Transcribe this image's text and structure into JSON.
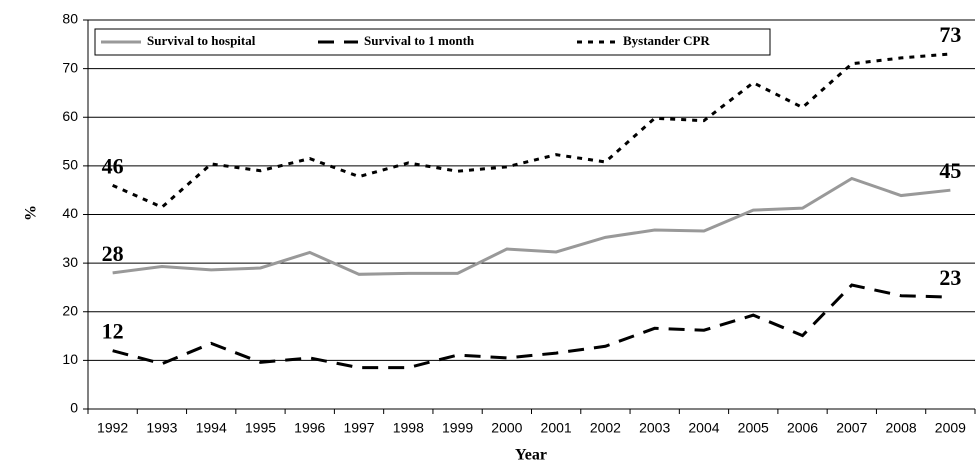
{
  "chart_data": {
    "type": "line",
    "x_label": "Year",
    "y_label": "%",
    "categories": [
      "1992",
      "1993",
      "1994",
      "1995",
      "1996",
      "1997",
      "1998",
      "1999",
      "2000",
      "2001",
      "2002",
      "2003",
      "2004",
      "2005",
      "2006",
      "2007",
      "2008",
      "2009"
    ],
    "series": [
      {
        "name": "Survival to hospital",
        "color": "#999999",
        "dash": "solid",
        "values": [
          28,
          29.3,
          28.6,
          29,
          32.2,
          27.7,
          27.9,
          27.9,
          32.9,
          32.3,
          35.3,
          36.8,
          36.6,
          40.9,
          41.3,
          47.4,
          43.9,
          45
        ],
        "value_labels": [
          "28",
          null,
          null,
          null,
          null,
          null,
          null,
          null,
          null,
          null,
          null,
          null,
          null,
          null,
          null,
          null,
          null,
          "45"
        ]
      },
      {
        "name": "Survival to 1 month",
        "color": "#000000",
        "dash": "long",
        "values": [
          12,
          9.3,
          13.5,
          9.6,
          10.5,
          8.5,
          8.5,
          11.1,
          10.5,
          11.5,
          12.9,
          16.6,
          16.2,
          19.3,
          15.1,
          25.5,
          23.3,
          23
        ],
        "value_labels": [
          "12",
          null,
          null,
          null,
          null,
          null,
          null,
          null,
          null,
          null,
          null,
          null,
          null,
          null,
          null,
          null,
          null,
          "23"
        ]
      },
      {
        "name": "Bystander CPR",
        "color": "#000000",
        "dash": "dot",
        "values": [
          46,
          41.5,
          50.4,
          49,
          51.5,
          47.8,
          50.6,
          48.9,
          49.8,
          52.3,
          50.8,
          59.8,
          59.3,
          67.1,
          62,
          71,
          72.2,
          73
        ],
        "value_labels": [
          "46",
          null,
          null,
          null,
          null,
          null,
          null,
          null,
          null,
          null,
          null,
          null,
          null,
          null,
          null,
          null,
          null,
          "73"
        ]
      }
    ],
    "ylim": [
      0,
      80
    ],
    "yticks": [
      0,
      10,
      20,
      30,
      40,
      50,
      60,
      70,
      80
    ],
    "grid": true,
    "legend": "top"
  }
}
